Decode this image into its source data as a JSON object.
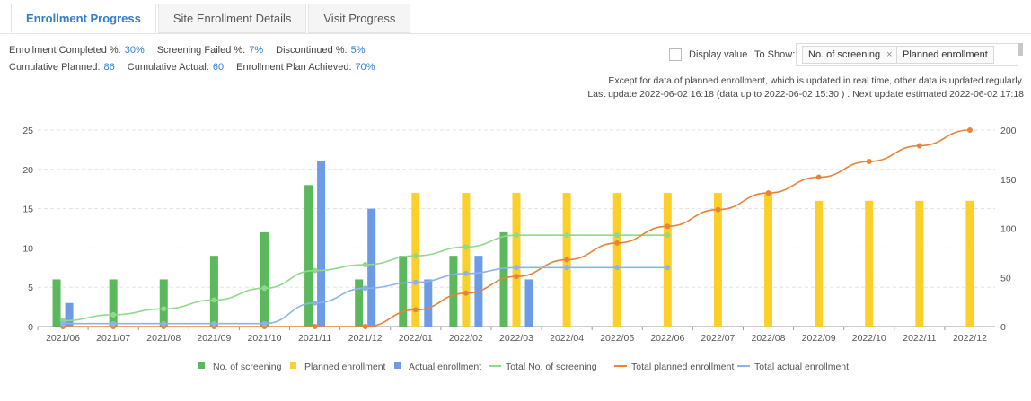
{
  "tabs": [
    "Enrollment Progress",
    "Site Enrollment Details",
    "Visit Progress"
  ],
  "stats_row1": [
    {
      "label": "Enrollment Completed %:",
      "value": "30%"
    },
    {
      "label": "Screening Failed %:",
      "value": "7%"
    },
    {
      "label": "Discontinued %:",
      "value": "5%"
    }
  ],
  "stats_row2": [
    {
      "label": "Cumulative Planned:",
      "value": "86"
    },
    {
      "label": "Cumulative Actual:",
      "value": "60"
    },
    {
      "label": "Enrollment Plan Achieved:",
      "value": "70%"
    }
  ],
  "controls": {
    "display_value_label": "Display value",
    "to_show_label": "To Show:",
    "tag_screening": "No. of screening",
    "tag_remove": "×",
    "tag_planned": "Planned enrollment"
  },
  "notes": {
    "line1": "Except for data of planned enrollment, which is updated in real time, other data is updated regularly.",
    "line2": "Last update 2022-06-02 16:18 (data up to 2022-06-02 15:30 ) . Next update estimated 2022-06-02 17:18"
  },
  "colors": {
    "screening": "#5cb85c",
    "planned": "#fcd02b",
    "actual": "#6d9be6",
    "total_screening": "#8fd98a",
    "total_planned": "#e8833a",
    "total_actual": "#8ab4ee"
  },
  "chart_data": {
    "type": "bar",
    "categories": [
      "2021/06",
      "2021/07",
      "2021/08",
      "2021/09",
      "2021/10",
      "2021/11",
      "2021/12",
      "2022/01",
      "2022/02",
      "2022/03",
      "2022/04",
      "2022/05",
      "2022/06",
      "2022/07",
      "2022/08",
      "2022/09",
      "2022/10",
      "2022/11",
      "2022/12"
    ],
    "ylim": [
      0,
      25
    ],
    "y_ticks": [
      0,
      5,
      10,
      15,
      20,
      25
    ],
    "y2lim": [
      0,
      200
    ],
    "y2_ticks": [
      0,
      50,
      100,
      150,
      200
    ],
    "grid": true,
    "legend_position": "bottom",
    "series": [
      {
        "name": "No. of screening",
        "type": "bar",
        "axis": "left",
        "values": [
          6,
          6,
          6,
          9,
          12,
          18,
          6,
          9,
          9,
          12,
          null,
          null,
          null,
          null,
          null,
          null,
          null,
          null,
          null
        ]
      },
      {
        "name": "Planned enrollment",
        "type": "bar",
        "axis": "left",
        "values": [
          null,
          null,
          null,
          null,
          null,
          null,
          null,
          17,
          17,
          17,
          17,
          17,
          17,
          17,
          17,
          16,
          16,
          16,
          16
        ]
      },
      {
        "name": "Actual enrollment",
        "type": "bar",
        "axis": "left",
        "values": [
          3,
          null,
          null,
          null,
          null,
          21,
          15,
          6,
          9,
          6,
          null,
          null,
          null,
          null,
          null,
          null,
          null,
          null,
          null
        ]
      },
      {
        "name": "Total No. of screening",
        "type": "line",
        "axis": "right",
        "values": [
          6,
          12,
          18,
          27,
          39,
          57,
          63,
          72,
          81,
          93,
          93,
          93,
          93,
          null,
          null,
          null,
          null,
          null,
          null
        ]
      },
      {
        "name": "Total planned enrollment",
        "type": "line",
        "axis": "right",
        "values": [
          0,
          0,
          0,
          0,
          0,
          0,
          0,
          17,
          34,
          51,
          68,
          85,
          102,
          119,
          136,
          152,
          168,
          184,
          200
        ]
      },
      {
        "name": "Total actual enrollment",
        "type": "line",
        "axis": "right",
        "values": [
          3,
          3,
          3,
          3,
          3,
          24,
          39,
          45,
          54,
          60,
          60,
          60,
          60,
          null,
          null,
          null,
          null,
          null,
          null
        ]
      }
    ]
  }
}
